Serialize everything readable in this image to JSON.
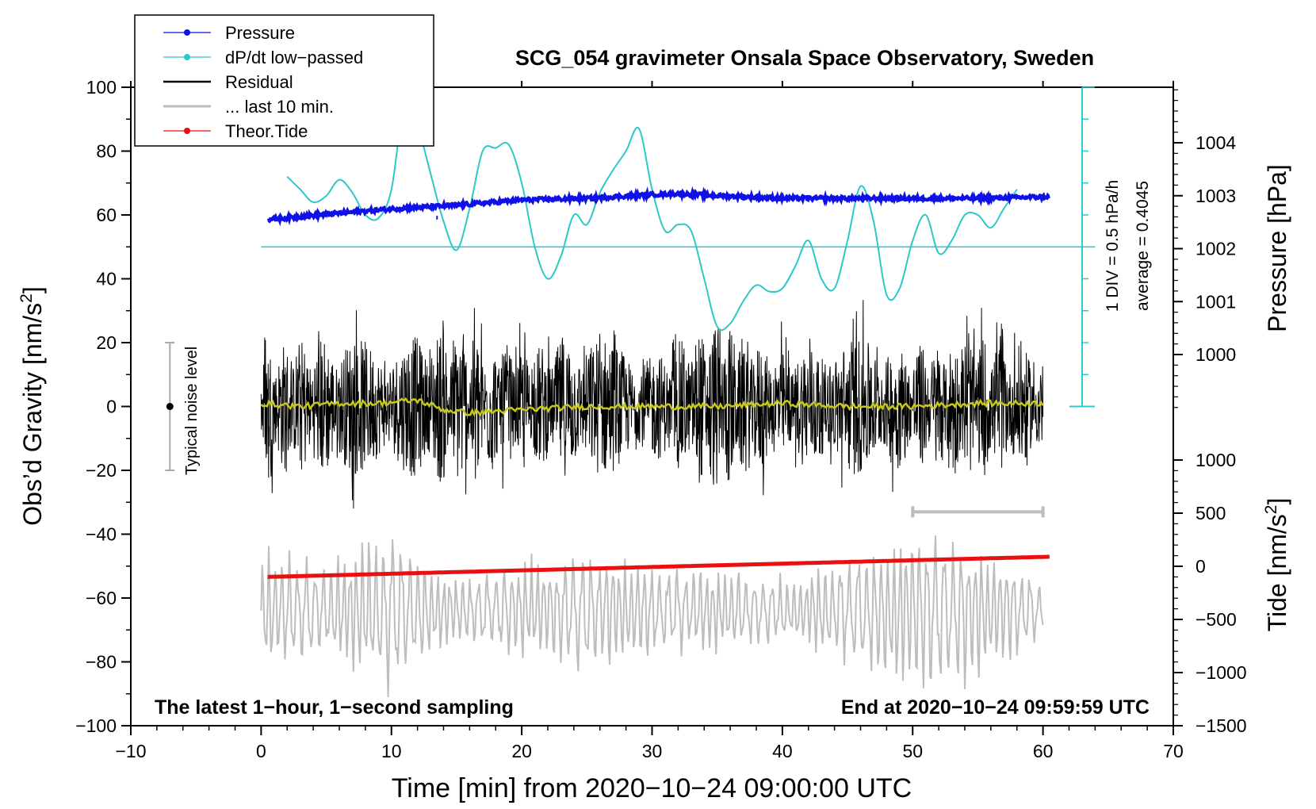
{
  "chart_data": {
    "type": "line",
    "title": "SCG_054 gravimeter Onsala Space Observatory, Sweden",
    "xlabel": "Time [min] from 2020−10−24 09:00:00 UTC",
    "xlim": [
      -10,
      70
    ],
    "xticks": [
      -10,
      0,
      10,
      20,
      30,
      40,
      50,
      60,
      70
    ],
    "xtick_labels": [
      "−10",
      "0",
      "10",
      "20",
      "30",
      "40",
      "50",
      "60",
      "70"
    ],
    "left_axis": {
      "label_main": "Obs’d Gravity [nm/s",
      "label_sup": "2",
      "label_end": "]",
      "ylim": [
        -100,
        100
      ],
      "ticks": [
        -100,
        -80,
        -60,
        -40,
        -20,
        0,
        20,
        40,
        60,
        80,
        100
      ],
      "tick_labels": [
        "−100",
        "−80",
        "−60",
        "−40",
        "−20",
        "0",
        "20",
        "40",
        "60",
        "80",
        "100"
      ]
    },
    "pressure_axis": {
      "label": "Pressure [hPa]",
      "ticks": [
        1000,
        1001,
        1002,
        1003,
        1004
      ],
      "tick_labels": [
        "1000",
        "1001",
        "1002",
        "1003",
        "1004"
      ],
      "range_hpa": [
        999.0,
        1005.0
      ]
    },
    "tide_axis": {
      "label_main": "Tide [nm/s",
      "label_sup": "2",
      "label_end": "]",
      "ticks": [
        -1500,
        -1000,
        -500,
        0,
        500,
        1000
      ],
      "tick_labels": [
        "−1500",
        "−1000",
        "−500",
        "0",
        "500",
        "1000"
      ],
      "range": [
        -1500,
        1000
      ]
    },
    "legend": {
      "position": "top-left",
      "entries": [
        {
          "label": "Pressure",
          "color": "#1010e8",
          "marker": true
        },
        {
          "label": "dP/dt low−passed",
          "color": "#2cc8c8",
          "marker": true
        },
        {
          "label": "Residual",
          "color": "#000000",
          "marker": false
        },
        {
          "label": "... last 10 min.",
          "color": "#bdbdbd",
          "marker": false
        },
        {
          "label": "Theor.Tide",
          "color": "#e81010",
          "marker": true
        }
      ]
    },
    "series": [
      {
        "name": "Pressure",
        "axis": "pressure",
        "color": "#1010e8",
        "x": [
          0.5,
          5,
          10,
          15,
          20,
          25,
          30,
          32,
          35,
          40,
          45,
          50,
          55,
          60.5
        ],
        "values": [
          1002.55,
          1002.65,
          1002.75,
          1002.82,
          1002.92,
          1002.95,
          1003.02,
          1003.04,
          1003.0,
          1002.95,
          1002.95,
          1002.95,
          1002.95,
          1002.98
        ]
      },
      {
        "name": "dP/dt low-passed",
        "axis": "left",
        "color": "#2cc8c8",
        "baseline": 50,
        "x": [
          2,
          3,
          4,
          5,
          6,
          7,
          8,
          9,
          10,
          11,
          12,
          13,
          14,
          15,
          16,
          17,
          18,
          19,
          20,
          21,
          22,
          23,
          24,
          25,
          26,
          27,
          28,
          29,
          30,
          31,
          32,
          33,
          34,
          35,
          36,
          37,
          38,
          39,
          40,
          41,
          42,
          43,
          44,
          45,
          46,
          47,
          48,
          49,
          50,
          51,
          52,
          53,
          54,
          55,
          56,
          57,
          58
        ],
        "values": [
          72,
          68,
          64,
          66,
          71,
          67,
          60,
          59,
          68,
          95,
          88,
          73,
          58,
          49,
          62,
          80,
          81,
          82,
          70,
          50,
          40,
          47,
          60,
          57,
          67,
          74,
          80,
          87,
          68,
          55,
          57,
          55,
          40,
          25,
          26,
          33,
          38,
          36,
          37,
          44,
          52,
          40,
          37,
          52,
          69,
          58,
          35,
          37,
          52,
          60,
          48,
          52,
          60,
          60,
          56,
          62,
          68
        ]
      },
      {
        "name": "Residual",
        "axis": "left",
        "color": "#000000",
        "x_range": [
          0,
          60
        ],
        "envelope_x": [
          0,
          5,
          10,
          15,
          20,
          25,
          30,
          35,
          40,
          45,
          50,
          55,
          60
        ],
        "envelope_amplitude": [
          24,
          28,
          26,
          32,
          22,
          30,
          20,
          34,
          22,
          28,
          24,
          28,
          22
        ],
        "mean_line": {
          "color": "#c8c81a",
          "x": [
            0,
            3,
            6,
            9,
            12,
            14,
            16,
            20,
            25,
            30,
            35,
            40,
            45,
            50,
            55,
            60
          ],
          "values": [
            1,
            0,
            1,
            1,
            2,
            -1,
            -2,
            -1,
            0,
            0,
            0,
            1,
            0,
            0,
            1,
            1
          ]
        }
      },
      {
        "name": "... last 10 min.",
        "axis": "left",
        "color": "#bdbdbd",
        "x_range": [
          0,
          60
        ],
        "center": -64,
        "envelope_x": [
          0,
          5,
          10,
          15,
          20,
          25,
          30,
          35,
          40,
          45,
          50,
          55,
          60
        ],
        "envelope_amplitude": [
          22,
          18,
          30,
          12,
          18,
          22,
          18,
          15,
          12,
          20,
          30,
          25,
          12
        ]
      },
      {
        "name": "Theor.Tide",
        "axis": "tide",
        "color": "#e81010",
        "x": [
          0.5,
          60.5
        ],
        "values": [
          -100,
          90
        ]
      }
    ],
    "annotations": {
      "scale_bar_label_1": "1 DIV = 0.5 hPa/h",
      "scale_bar_label_2": "average = 0.4045",
      "scale_bar_x": 63,
      "noise_label": "Typical noise level",
      "noise_x": -7,
      "noise_range": [
        -20,
        20
      ],
      "window_bar_x": [
        50,
        60
      ],
      "window_bar_y": -33,
      "bottom_left_note": "The latest 1−hour, 1−second sampling",
      "bottom_right_note": "End at 2020−10−24 09:59:59 UTC"
    }
  }
}
